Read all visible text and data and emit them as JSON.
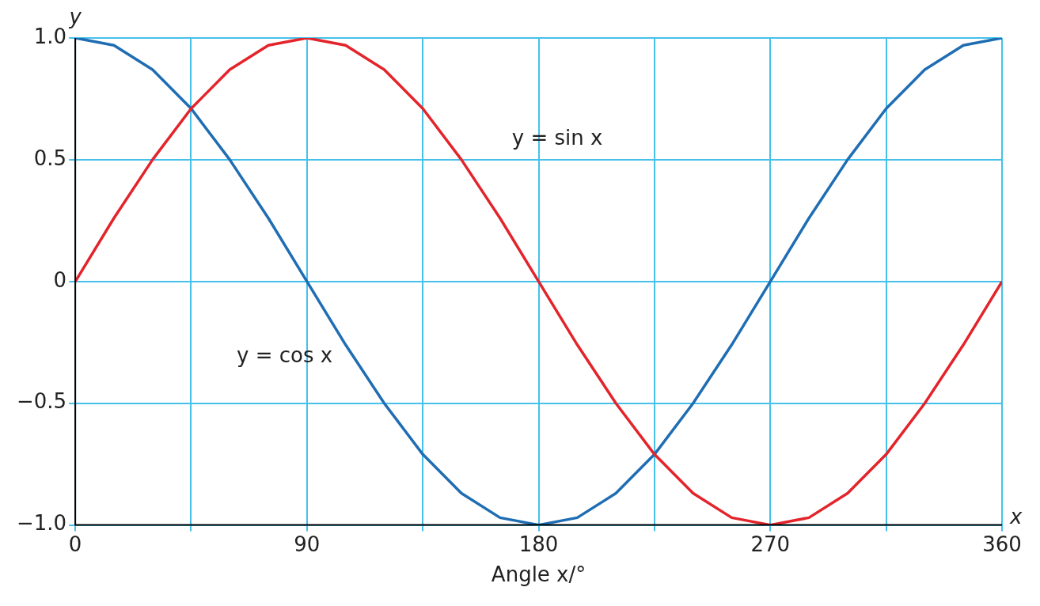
{
  "chart_data": {
    "type": "line",
    "xlabel": "Angle x/°",
    "ylabel": "y",
    "annotations": [
      "x"
    ],
    "x": [
      0,
      15,
      30,
      45,
      60,
      75,
      90,
      105,
      120,
      135,
      150,
      165,
      180,
      195,
      210,
      225,
      240,
      255,
      270,
      285,
      300,
      315,
      330,
      345,
      360
    ],
    "series": [
      {
        "name": "y = sin x",
        "color": "#e3242b",
        "values": [
          0,
          0.26,
          0.5,
          0.71,
          0.87,
          0.97,
          1,
          0.97,
          0.87,
          0.71,
          0.5,
          0.26,
          0,
          -0.26,
          -0.5,
          -0.71,
          -0.87,
          -0.97,
          -1,
          -0.97,
          -0.87,
          -0.71,
          -0.5,
          -0.26,
          0
        ]
      },
      {
        "name": "y = cos x",
        "color": "#1f6db3",
        "values": [
          1,
          0.97,
          0.87,
          0.71,
          0.5,
          0.26,
          0,
          -0.26,
          -0.5,
          -0.71,
          -0.87,
          -0.97,
          -1,
          -0.97,
          -0.87,
          -0.71,
          -0.5,
          -0.26,
          0,
          0.26,
          0.5,
          0.71,
          0.87,
          0.97,
          1
        ]
      }
    ],
    "xlim": [
      0,
      360
    ],
    "xticks": [
      0,
      {
        "value": 45,
        "label": null
      },
      90,
      {
        "value": 135,
        "label": null
      },
      180,
      {
        "value": 225,
        "label": null
      },
      270,
      {
        "value": 315,
        "label": null
      },
      360
    ],
    "ylim": [
      -1,
      1
    ],
    "yticks": [
      {
        "value": -1,
        "label": "−1.0"
      },
      {
        "value": -0.5,
        "label": "−0.5"
      },
      0,
      0.5,
      {
        "value": 1,
        "label": "1.0"
      }
    ],
    "grid": true,
    "legend": false,
    "marker": "none",
    "line_style": "solid"
  }
}
